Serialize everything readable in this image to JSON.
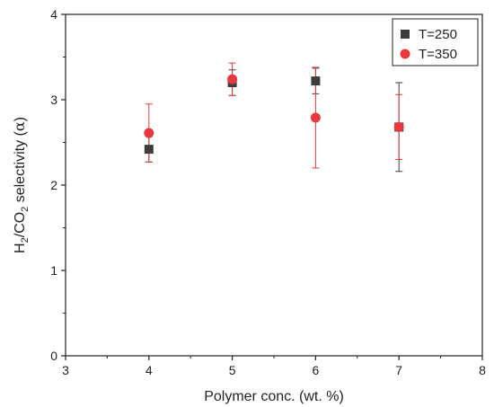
{
  "chart_data": {
    "type": "scatter",
    "xlabel": "Polymer conc. (wt. %)",
    "ylabel_parts": [
      "H",
      "2",
      "/CO",
      "2",
      " selectivity (",
      "α",
      ")"
    ],
    "xlim": [
      3,
      8
    ],
    "ylim": [
      0,
      4
    ],
    "xticks": [
      "3",
      "4",
      "5",
      "6",
      "7",
      "8"
    ],
    "yticks": [
      "0",
      "1",
      "2",
      "3",
      "4"
    ],
    "grid": false,
    "legend_position": "top-right",
    "series": [
      {
        "name": "T=250",
        "marker": "square",
        "color": "#3d3d3d",
        "x": [
          4,
          5,
          6,
          7
        ],
        "y": [
          2.42,
          3.2,
          3.22,
          2.68
        ],
        "err": [
          0.15,
          0.15,
          0.15,
          0.52
        ]
      },
      {
        "name": "T=350",
        "marker": "circle",
        "color": "#e8383d",
        "x": [
          4,
          5,
          6,
          7
        ],
        "y": [
          2.61,
          3.24,
          2.79,
          2.68
        ],
        "err": [
          0.34,
          0.19,
          0.59,
          0.38
        ]
      }
    ]
  }
}
